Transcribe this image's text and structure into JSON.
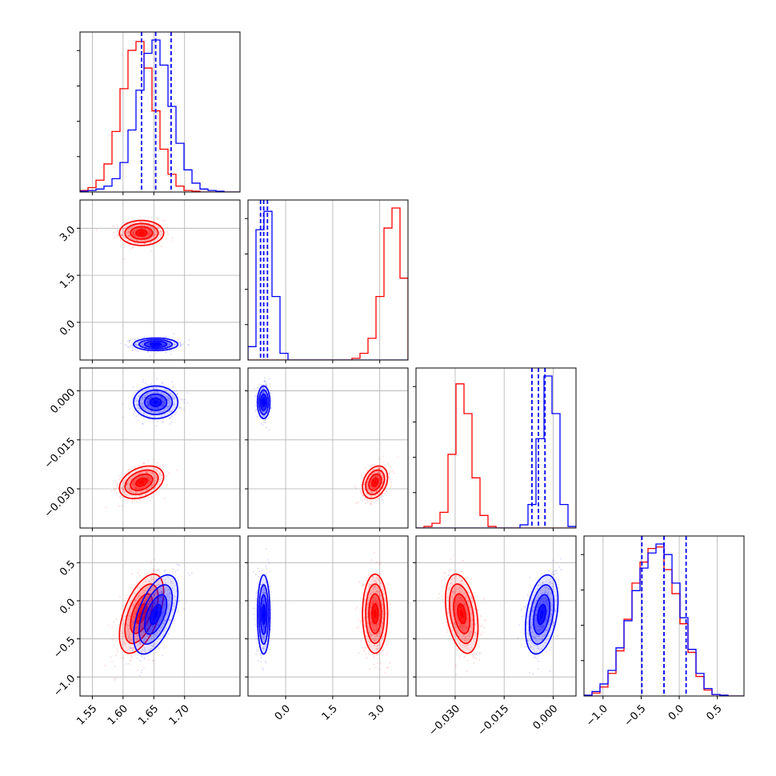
{
  "chart_data": {
    "type": "corner",
    "title": "",
    "grid": true,
    "colors": {
      "blue": "#0000ff",
      "red": "#ff0000",
      "grid": "#b0b0b0"
    },
    "series": [
      {
        "color": "#0000ff",
        "mean": [
          1.653,
          -0.7,
          -0.0035,
          -0.18
        ],
        "sd": [
          0.018,
          0.1,
          0.0025,
          0.26
        ],
        "quantiles": [
          [
            1.63,
            1.653,
            1.678
          ],
          [
            -0.8,
            -0.7,
            -0.58
          ],
          [
            -0.0065,
            -0.0045,
            -0.0025
          ],
          [
            -0.49,
            -0.2,
            0.09
          ]
        ]
      },
      {
        "color": "#ff0000",
        "mean": [
          1.63,
          2.85,
          -0.028,
          -0.17
        ],
        "sd": [
          0.018,
          0.2,
          0.0025,
          0.26
        ]
      }
    ],
    "variables": [
      {
        "range": [
          1.53,
          1.79
        ],
        "ticks": [
          1.55,
          1.6,
          1.65,
          1.7
        ],
        "tick_labels": [
          "1.55",
          "1.60",
          "1.65",
          "1.70"
        ]
      },
      {
        "range": [
          -1.2,
          3.9
        ],
        "ticks": [
          0.0,
          1.5,
          3.0
        ],
        "tick_labels": [
          "0.0",
          "1.5",
          "3.0"
        ]
      },
      {
        "range": [
          -0.042,
          0.007
        ],
        "ticks": [
          -0.03,
          -0.015,
          0.0
        ],
        "tick_labels": [
          "−0.030",
          "−0.015",
          "0.000"
        ]
      },
      {
        "range": [
          -1.25,
          0.85
        ],
        "ticks": [
          -1.0,
          -0.5,
          0.0,
          0.5
        ],
        "tick_labels": [
          "−1.0",
          "−0.5",
          "0.0",
          "0.5"
        ]
      }
    ],
    "histograms": [
      {
        "bins": [
          1.53,
          1.79,
          20
        ],
        "blue": [
          0.5,
          1,
          2,
          4,
          9,
          20,
          42,
          69,
          94,
          103,
          86,
          58,
          33,
          15,
          6,
          2,
          1,
          0.5,
          0,
          0
        ],
        "red": [
          1,
          3,
          8,
          19,
          41,
          70,
          96,
          102,
          84,
          55,
          29,
          12,
          4,
          1,
          0.5,
          0,
          0,
          0,
          0,
          0
        ]
      },
      {
        "bins": [
          -1.2,
          3.9,
          20
        ],
        "blue": [
          8,
          78,
          89,
          38,
          4,
          0,
          0,
          0,
          0,
          0,
          0,
          0,
          0,
          0,
          0,
          0,
          0,
          0,
          0,
          0
        ],
        "red": [
          0,
          0,
          0,
          0,
          0,
          0,
          0,
          0,
          0,
          0,
          0,
          0,
          0,
          1,
          4,
          13,
          38,
          79,
          91,
          49
        ]
      },
      {
        "bins": [
          -0.042,
          0.007,
          20
        ],
        "blue": [
          0,
          0,
          0,
          0,
          0,
          0,
          0,
          0,
          0,
          0,
          0,
          0,
          0,
          2,
          15,
          57,
          97,
          73,
          15,
          1
        ],
        "red": [
          0,
          1,
          3,
          10,
          47,
          92,
          73,
          32,
          8,
          1,
          0,
          0,
          0,
          0,
          0,
          0,
          0,
          0,
          0,
          0
        ]
      },
      {
        "bins": [
          -1.25,
          0.85,
          20
        ],
        "blue": [
          0.5,
          3,
          8,
          17,
          32,
          50,
          70,
          85,
          95,
          101,
          94,
          75,
          52,
          31,
          15,
          5,
          1,
          0.5,
          0,
          0
        ],
        "red": [
          0.5,
          2,
          6,
          15,
          30,
          51,
          75,
          89,
          98,
          99,
          84,
          68,
          48,
          29,
          13,
          4,
          1,
          0.5,
          0,
          0
        ]
      }
    ],
    "correlations": {
      "blue": {
        "1-0": 0.0,
        "2-0": 0.0,
        "2-1": 0.0,
        "3-0": 0.55,
        "3-1": 0.0,
        "3-2": 0.35
      },
      "red": {
        "1-0": 0.0,
        "2-0": 0.35,
        "2-1": 0.3,
        "3-0": 0.55,
        "3-1": 0.0,
        "3-2": -0.35
      }
    }
  }
}
